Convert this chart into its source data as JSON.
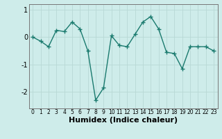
{
  "x": [
    0,
    1,
    2,
    3,
    4,
    5,
    6,
    7,
    8,
    9,
    10,
    11,
    12,
    13,
    14,
    15,
    16,
    17,
    18,
    19,
    20,
    21,
    22,
    23
  ],
  "y": [
    0.0,
    -0.15,
    -0.35,
    0.25,
    0.2,
    0.55,
    0.3,
    -0.5,
    -2.3,
    -1.85,
    0.05,
    -0.3,
    -0.35,
    0.1,
    0.55,
    0.75,
    0.3,
    -0.55,
    -0.6,
    -1.15,
    -0.35,
    -0.35,
    -0.35,
    -0.5
  ],
  "line_color": "#1a7a6e",
  "marker": "+",
  "marker_size": 4,
  "bg_color": "#ceecea",
  "grid_color": "#b8d8d5",
  "xlabel": "Humidex (Indice chaleur)",
  "xlim": [
    -0.5,
    23.5
  ],
  "ylim": [
    -2.6,
    1.2
  ],
  "yticks": [
    -2,
    -1,
    0,
    1
  ],
  "xticks": [
    0,
    1,
    2,
    3,
    4,
    5,
    6,
    7,
    8,
    9,
    10,
    11,
    12,
    13,
    14,
    15,
    16,
    17,
    18,
    19,
    20,
    21,
    22,
    23
  ],
  "xtick_fontsize": 5.5,
  "ytick_fontsize": 7.0,
  "xlabel_fontsize": 8.0,
  "line_width": 1.0,
  "spine_color": "#777777"
}
